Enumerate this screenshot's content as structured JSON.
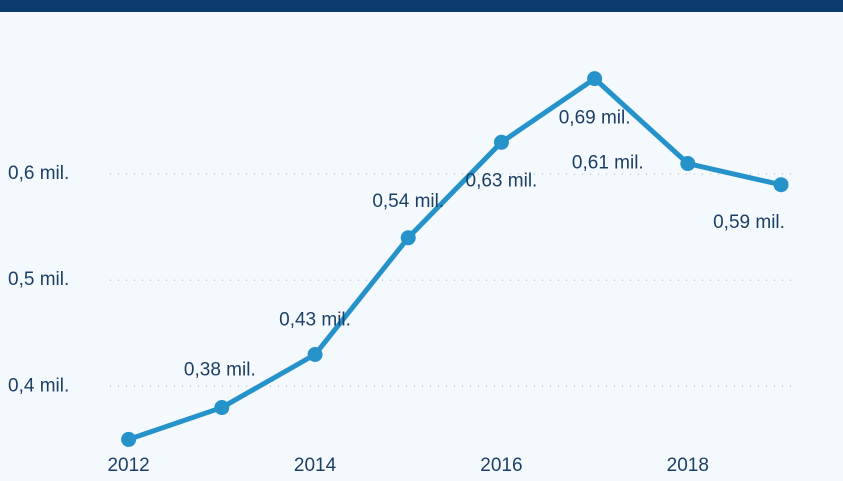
{
  "chart_data": {
    "type": "line",
    "x": [
      2012,
      2013,
      2014,
      2015,
      2016,
      2017,
      2018,
      2019
    ],
    "series": [
      {
        "name": null,
        "color": "#2593c9",
        "values": [
          0.35,
          0.38,
          0.43,
          0.54,
          0.63,
          0.69,
          0.61,
          0.59
        ],
        "value_labels": [
          null,
          "0,38 mil.",
          "0,43 mil.",
          "0,54 mil.",
          "0,63 mil.",
          "0,69 mil.",
          "0,61 mil.",
          "0,59 mil."
        ]
      }
    ],
    "xlim": [
      2011.8,
      2019.15
    ],
    "xticks": [
      2012,
      2014,
      2016,
      2018
    ],
    "ylim": [
      0.34,
      0.72
    ],
    "yticks": [
      {
        "value": 0.4,
        "label": "0,4 mil."
      },
      {
        "value": 0.5,
        "label": "0,5 mil."
      },
      {
        "value": 0.6,
        "label": "0,6 mil."
      }
    ],
    "grid": true
  }
}
